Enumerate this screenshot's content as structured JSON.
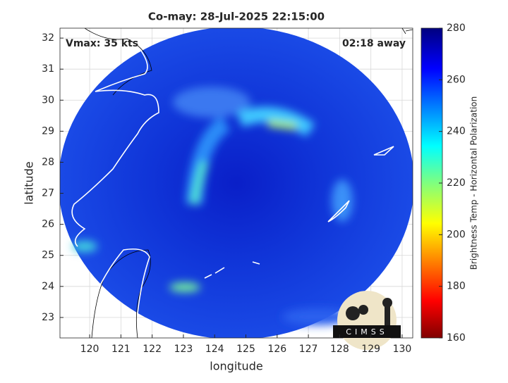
{
  "chart_data": {
    "type": "map",
    "title": "Co-may: 28-Jul-2025 22:15:00",
    "annotations": [
      "Vmax: 35 kts",
      "02:18 away"
    ],
    "xlabel": "longitude",
    "ylabel": "latitude",
    "xlim": [
      119.05,
      130.34
    ],
    "ylim": [
      22.34,
      32.32
    ],
    "xticks": [
      120,
      121,
      122,
      123,
      124,
      125,
      126,
      127,
      128,
      129,
      130
    ],
    "yticks": [
      23,
      24,
      25,
      26,
      27,
      28,
      29,
      30,
      31,
      32
    ],
    "grid": true,
    "colorbar": {
      "label": "Brightness Temp - Horizontal Polarization",
      "lim": [
        160,
        280
      ],
      "ticks": [
        160,
        180,
        200,
        220,
        240,
        260,
        280
      ]
    }
  },
  "logo_text": "CIMSS"
}
